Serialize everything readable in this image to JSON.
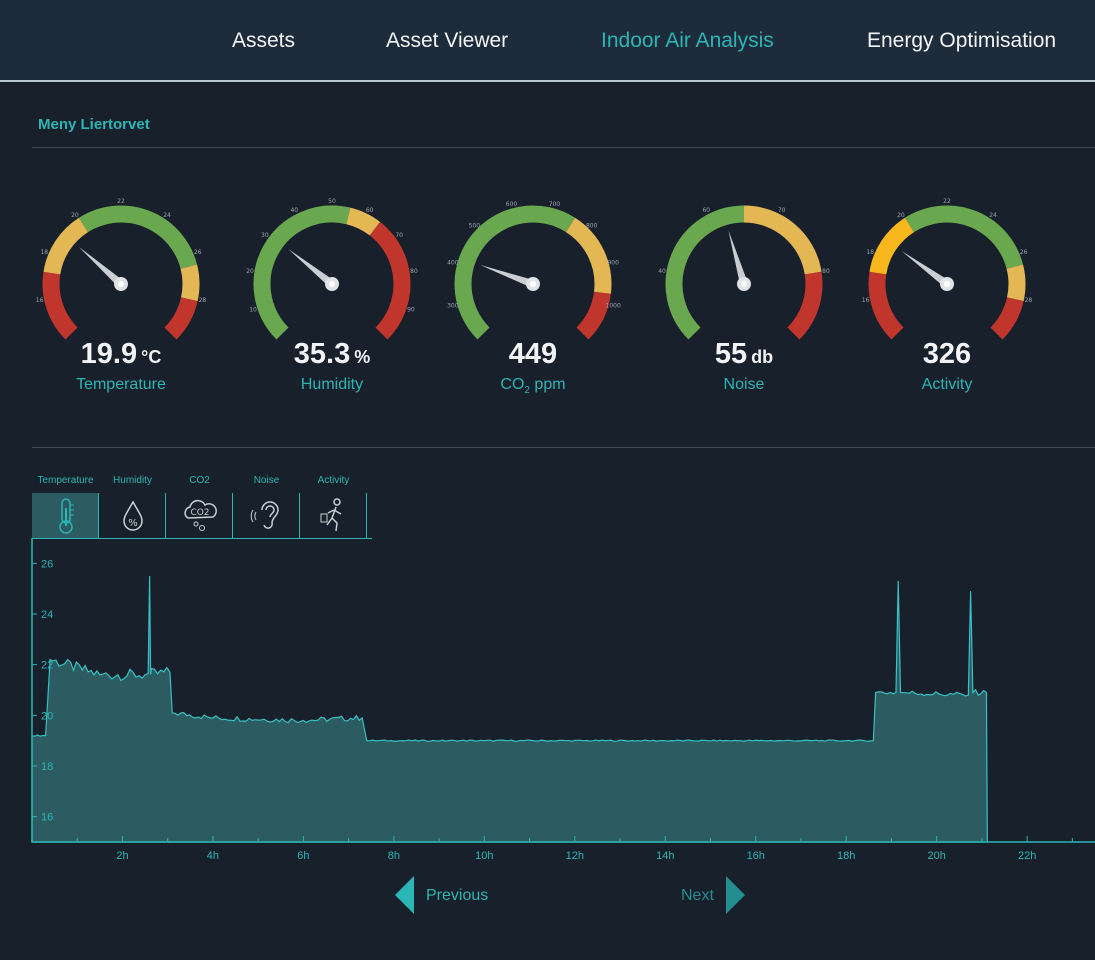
{
  "nav": {
    "items": [
      {
        "label": "Assets",
        "active": false
      },
      {
        "label": "Asset Viewer",
        "active": false
      },
      {
        "label": "Indoor Air Analysis",
        "active": true
      },
      {
        "label": "Energy Optimisation",
        "active": false
      }
    ]
  },
  "site": {
    "title": "Meny Liertorvet"
  },
  "gauges": [
    {
      "value": "19.9",
      "unit": "°C",
      "label": "Temperature",
      "ticks": [
        "14",
        "16",
        "18",
        "20",
        "22",
        "24",
        "26",
        "28",
        "30"
      ]
    },
    {
      "value": "35.3",
      "unit": "%",
      "label": "Humidity",
      "ticks": [
        "0",
        "10",
        "20",
        "30",
        "40",
        "50",
        "60",
        "70",
        "80",
        "90",
        "100"
      ]
    },
    {
      "value": "449",
      "unit": "",
      "label": "CO",
      "label_sub": "2",
      "label_suffix": " ppm",
      "ticks": [
        "200",
        "300",
        "400",
        "500",
        "600",
        "700",
        "800",
        "900",
        "1000",
        "1100"
      ]
    },
    {
      "value": "55",
      "unit": "db",
      "label": "Noise",
      "ticks": [
        "20",
        "40",
        "60",
        "70",
        "80",
        "90"
      ]
    },
    {
      "value": "326",
      "unit": "",
      "label": "Activity",
      "ticks": [
        "14",
        "16",
        "18",
        "20",
        "22",
        "24",
        "26",
        "28",
        "30"
      ]
    }
  ],
  "tabs": [
    {
      "label": "Temperature",
      "icon": "thermometer-icon",
      "active": true
    },
    {
      "label": "Humidity",
      "icon": "humidity-drop-icon",
      "active": false
    },
    {
      "label": "CO2",
      "icon": "co2-cloud-icon",
      "active": false
    },
    {
      "label": "Noise",
      "icon": "ear-icon",
      "active": false
    },
    {
      "label": "Activity",
      "icon": "walking-person-icon",
      "active": false
    }
  ],
  "pager": {
    "previous": "Previous",
    "next": "Next"
  },
  "colors": {
    "accent": "#2bb5b5",
    "green": "#6aa84f",
    "yellow": "#e3b854",
    "orange": "#f7b71d",
    "red": "#c0362c",
    "area_fill": "#2c5b61"
  },
  "chart_data": {
    "type": "area",
    "xlabel": "",
    "ylabel": "",
    "xlim": [
      0,
      23.5
    ],
    "ylim": [
      15,
      27
    ],
    "x_ticks": [
      "2h",
      "4h",
      "6h",
      "8h",
      "10h",
      "12h",
      "14h",
      "16h",
      "18h",
      "20h",
      "22h"
    ],
    "y_ticks": [
      "16",
      "18",
      "20",
      "22",
      "24",
      "26"
    ],
    "series": [
      {
        "points": [
          [
            0,
            19.2
          ],
          [
            0.3,
            19.2
          ],
          [
            0.4,
            22.2
          ],
          [
            1.5,
            21.6
          ],
          [
            2.5,
            21.6
          ],
          [
            3.05,
            21.7
          ],
          [
            3.1,
            20.1
          ],
          [
            4,
            19.9
          ],
          [
            6,
            19.8
          ],
          [
            7.3,
            19.9
          ],
          [
            7.4,
            19.0
          ],
          [
            10,
            19.0
          ],
          [
            14,
            19.0
          ],
          [
            18,
            19.0
          ],
          [
            18.6,
            19.0
          ],
          [
            18.65,
            20.9
          ],
          [
            19.1,
            20.9
          ],
          [
            19.15,
            25.3
          ],
          [
            19.2,
            20.9
          ],
          [
            20.7,
            20.8
          ],
          [
            20.75,
            24.9
          ],
          [
            20.8,
            20.9
          ],
          [
            21.1,
            20.9
          ],
          [
            21.12,
            15
          ]
        ],
        "spikes": [
          [
            2.6,
            25.5
          ]
        ]
      }
    ]
  }
}
